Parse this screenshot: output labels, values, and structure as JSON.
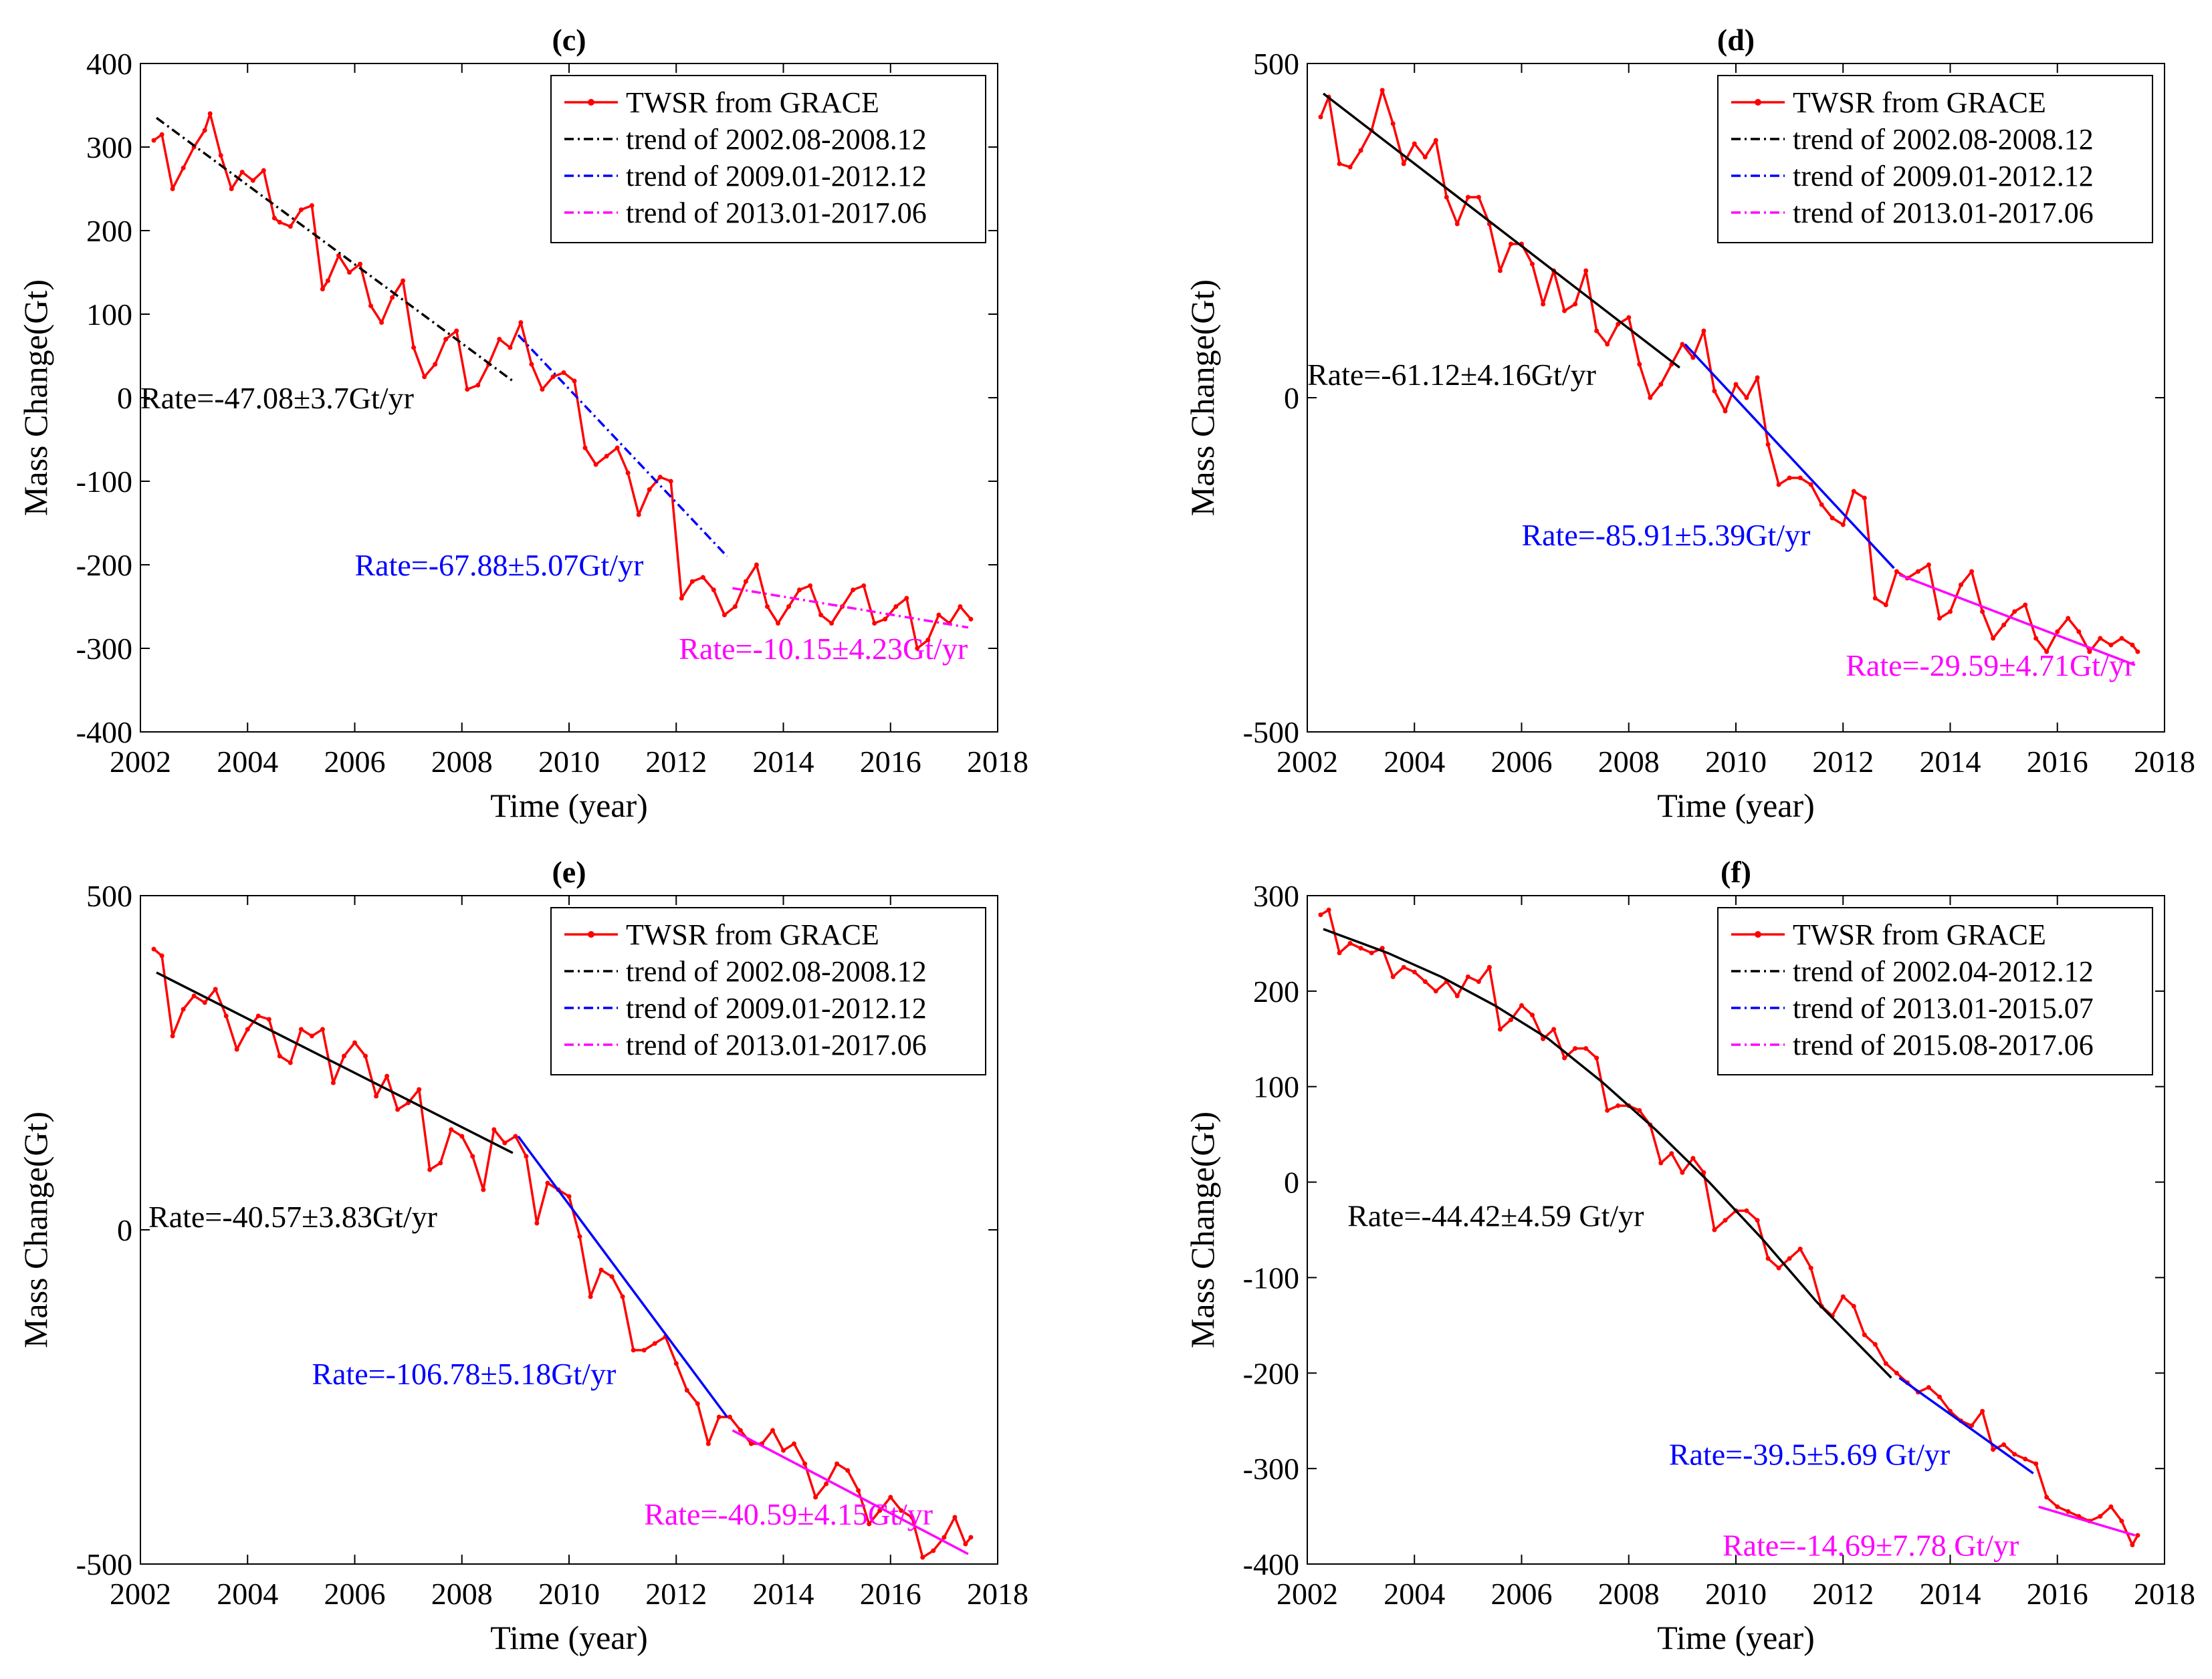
{
  "colors": {
    "data": "#ff0000",
    "trend1": "#000000",
    "trend2": "#0000ff",
    "trend3": "#ff00ff"
  },
  "chart_data": [
    {
      "type": "line",
      "title": "(c)",
      "xlabel": "Time (year)",
      "ylabel": "Mass Change(Gt)",
      "xlim": [
        2002,
        2018
      ],
      "ylim": [
        -400,
        400
      ],
      "xticks": [
        2002,
        2004,
        2006,
        2008,
        2010,
        2012,
        2014,
        2016,
        2018
      ],
      "yticks": [
        -400,
        -300,
        -200,
        -100,
        0,
        100,
        200,
        300,
        400
      ],
      "legend_position": "top-right",
      "series": [
        {
          "name": "TWSR from GRACE",
          "kind": "data",
          "color": "#ff0000",
          "x": [
            2002.25,
            2002.4,
            2002.6,
            2002.8,
            2003.0,
            2003.2,
            2003.3,
            2003.5,
            2003.7,
            2003.9,
            2004.1,
            2004.3,
            2004.5,
            2004.6,
            2004.8,
            2005.0,
            2005.2,
            2005.4,
            2005.5,
            2005.7,
            2005.9,
            2006.1,
            2006.3,
            2006.5,
            2006.7,
            2006.9,
            2007.1,
            2007.3,
            2007.5,
            2007.7,
            2007.9,
            2008.1,
            2008.3,
            2008.5,
            2008.7,
            2008.9,
            2009.1,
            2009.3,
            2009.5,
            2009.7,
            2009.9,
            2010.1,
            2010.3,
            2010.5,
            2010.7,
            2010.9,
            2011.1,
            2011.3,
            2011.5,
            2011.7,
            2011.9,
            2012.1,
            2012.3,
            2012.5,
            2012.7,
            2012.9,
            2013.1,
            2013.3,
            2013.5,
            2013.7,
            2013.9,
            2014.1,
            2014.3,
            2014.5,
            2014.7,
            2014.9,
            2015.1,
            2015.3,
            2015.5,
            2015.7,
            2015.9,
            2016.1,
            2016.3,
            2016.5,
            2016.7,
            2016.9,
            2017.1,
            2017.3,
            2017.5
          ],
          "y": [
            308,
            315,
            250,
            275,
            300,
            320,
            340,
            290,
            250,
            270,
            260,
            272,
            215,
            210,
            205,
            225,
            230,
            130,
            140,
            170,
            150,
            160,
            110,
            90,
            120,
            140,
            60,
            25,
            40,
            70,
            80,
            10,
            15,
            40,
            70,
            60,
            90,
            40,
            10,
            25,
            30,
            20,
            -60,
            -80,
            -70,
            -60,
            -90,
            -140,
            -110,
            -95,
            -100,
            -240,
            -220,
            -215,
            -230,
            -260,
            -250,
            -220,
            -200,
            -250,
            -270,
            -250,
            -230,
            -225,
            -260,
            -270,
            -250,
            -230,
            -225,
            -270,
            -265,
            -250,
            -240,
            -300,
            -290,
            -260,
            -270,
            -250,
            -265
          ]
        },
        {
          "name": "trend of 2002.08-2008.12",
          "kind": "trend",
          "color": "#000000",
          "x": [
            2002.3,
            2008.95
          ],
          "y": [
            335,
            20
          ]
        },
        {
          "name": "trend of 2009.01-2012.12",
          "kind": "trend",
          "color": "#0000ff",
          "x": [
            2009.05,
            2012.95
          ],
          "y": [
            75,
            -190
          ]
        },
        {
          "name": "trend of 2013.01-2017.06",
          "kind": "trend",
          "color": "#ff00ff",
          "x": [
            2013.05,
            2017.45
          ],
          "y": [
            -228,
            -275
          ]
        }
      ],
      "annotations": [
        {
          "text": "Rate=-47.08±3.7Gt/yr",
          "x": 2002.0,
          "y": 0,
          "color": "#000000"
        },
        {
          "text": "Rate=-67.88±5.07Gt/yr",
          "x": 2006.0,
          "y": -200,
          "color": "#0000ff"
        },
        {
          "text": "Rate=-10.15±4.23Gt/yr",
          "x": 2012.05,
          "y": -300,
          "color": "#ff00ff"
        }
      ]
    },
    {
      "type": "line",
      "title": "(d)",
      "xlabel": "Time (year)",
      "ylabel": "Mass Change(Gt)",
      "xlim": [
        2002,
        2018
      ],
      "ylim": [
        -500,
        500
      ],
      "xticks": [
        2002,
        2004,
        2006,
        2008,
        2010,
        2012,
        2014,
        2016,
        2018
      ],
      "yticks": [
        -500,
        0,
        500
      ],
      "legend_position": "top-right",
      "series": [
        {
          "name": "TWSR from GRACE",
          "kind": "data",
          "color": "#ff0000",
          "x": [
            2002.25,
            2002.4,
            2002.6,
            2002.8,
            2003.0,
            2003.2,
            2003.4,
            2003.6,
            2003.8,
            2004.0,
            2004.2,
            2004.4,
            2004.6,
            2004.8,
            2005.0,
            2005.2,
            2005.4,
            2005.6,
            2005.8,
            2006.0,
            2006.2,
            2006.4,
            2006.6,
            2006.8,
            2007.0,
            2007.2,
            2007.4,
            2007.6,
            2007.8,
            2008.0,
            2008.2,
            2008.4,
            2008.6,
            2008.8,
            2009.0,
            2009.2,
            2009.4,
            2009.6,
            2009.8,
            2010.0,
            2010.2,
            2010.4,
            2010.6,
            2010.8,
            2011.0,
            2011.2,
            2011.4,
            2011.6,
            2011.8,
            2012.0,
            2012.2,
            2012.4,
            2012.6,
            2012.8,
            2013.0,
            2013.2,
            2013.4,
            2013.6,
            2013.8,
            2014.0,
            2014.2,
            2014.4,
            2014.6,
            2014.8,
            2015.0,
            2015.2,
            2015.4,
            2015.6,
            2015.8,
            2016.0,
            2016.2,
            2016.4,
            2016.6,
            2016.8,
            2017.0,
            2017.2,
            2017.4,
            2017.5
          ],
          "y": [
            420,
            450,
            350,
            345,
            370,
            400,
            460,
            410,
            350,
            380,
            360,
            385,
            300,
            260,
            300,
            300,
            260,
            190,
            230,
            230,
            200,
            140,
            190,
            130,
            140,
            190,
            100,
            80,
            110,
            120,
            50,
            0,
            20,
            50,
            80,
            60,
            100,
            10,
            -20,
            20,
            0,
            30,
            -70,
            -130,
            -120,
            -120,
            -130,
            -160,
            -180,
            -190,
            -140,
            -150,
            -300,
            -310,
            -260,
            -270,
            -260,
            -250,
            -330,
            -320,
            -280,
            -260,
            -320,
            -360,
            -340,
            -320,
            -310,
            -360,
            -380,
            -350,
            -330,
            -350,
            -380,
            -360,
            -370,
            -360,
            -370,
            -380
          ]
        },
        {
          "name": "trend of 2002.08-2008.12",
          "kind": "trend",
          "color": "#000000",
          "x": [
            2002.3,
            2008.95
          ],
          "y": [
            455,
            45
          ]
        },
        {
          "name": "trend of 2009.01-2012.12",
          "kind": "trend",
          "color": "#0000ff",
          "x": [
            2009.05,
            2012.95
          ],
          "y": [
            80,
            -255
          ]
        },
        {
          "name": "trend of 2013.01-2017.06",
          "kind": "trend",
          "color": "#ff00ff",
          "x": [
            2013.05,
            2017.45
          ],
          "y": [
            -265,
            -400
          ]
        }
      ],
      "annotations": [
        {
          "text": "Rate=-61.12±4.16Gt/yr",
          "x": 2002.0,
          "y": 35,
          "color": "#000000"
        },
        {
          "text": "Rate=-85.91±5.39Gt/yr",
          "x": 2006.0,
          "y": -205,
          "color": "#0000ff"
        },
        {
          "text": "Rate=-29.59±4.71Gt/yr",
          "x": 2012.05,
          "y": -400,
          "color": "#ff00ff"
        }
      ]
    },
    {
      "type": "line",
      "title": "(e)",
      "xlabel": "Time (year)",
      "ylabel": "Mass Change(Gt)",
      "xlim": [
        2002,
        2018
      ],
      "ylim": [
        -500,
        500
      ],
      "xticks": [
        2002,
        2004,
        2006,
        2008,
        2010,
        2012,
        2014,
        2016,
        2018
      ],
      "yticks": [
        -500,
        0,
        500
      ],
      "legend_position": "top-right",
      "series": [
        {
          "name": "TWSR from GRACE",
          "kind": "data",
          "color": "#ff0000",
          "x": [
            2002.25,
            2002.4,
            2002.6,
            2002.8,
            2003.0,
            2003.2,
            2003.4,
            2003.6,
            2003.8,
            2004.0,
            2004.2,
            2004.4,
            2004.6,
            2004.8,
            2005.0,
            2005.2,
            2005.4,
            2005.6,
            2005.8,
            2006.0,
            2006.2,
            2006.4,
            2006.6,
            2006.8,
            2007.0,
            2007.2,
            2007.4,
            2007.6,
            2007.8,
            2008.0,
            2008.2,
            2008.4,
            2008.6,
            2008.8,
            2009.0,
            2009.2,
            2009.4,
            2009.6,
            2009.8,
            2010.0,
            2010.2,
            2010.4,
            2010.6,
            2010.8,
            2011.0,
            2011.2,
            2011.4,
            2011.6,
            2011.8,
            2012.0,
            2012.2,
            2012.4,
            2012.6,
            2012.8,
            2013.0,
            2013.2,
            2013.4,
            2013.6,
            2013.8,
            2014.0,
            2014.2,
            2014.4,
            2014.6,
            2014.8,
            2015.0,
            2015.2,
            2015.4,
            2015.6,
            2015.8,
            2016.0,
            2016.2,
            2016.4,
            2016.6,
            2016.8,
            2017.0,
            2017.2,
            2017.4,
            2017.5
          ],
          "y": [
            420,
            410,
            290,
            330,
            350,
            340,
            360,
            320,
            270,
            300,
            320,
            315,
            260,
            250,
            300,
            290,
            300,
            220,
            260,
            280,
            260,
            200,
            230,
            180,
            190,
            210,
            90,
            100,
            150,
            140,
            110,
            60,
            150,
            130,
            140,
            110,
            10,
            70,
            60,
            50,
            -10,
            -100,
            -60,
            -70,
            -100,
            -180,
            -180,
            -170,
            -160,
            -200,
            -240,
            -260,
            -320,
            -280,
            -280,
            -300,
            -320,
            -320,
            -300,
            -330,
            -320,
            -350,
            -400,
            -380,
            -350,
            -360,
            -390,
            -440,
            -420,
            -400,
            -420,
            -430,
            -490,
            -480,
            -460,
            -430,
            -470,
            -460
          ]
        },
        {
          "name": "trend of 2002.08-2008.12",
          "kind": "trend",
          "color": "#000000",
          "x": [
            2002.3,
            2008.95
          ],
          "y": [
            385,
            115
          ]
        },
        {
          "name": "trend of 2009.01-2012.12",
          "kind": "trend",
          "color": "#0000ff",
          "x": [
            2009.05,
            2012.95
          ],
          "y": [
            140,
            -280
          ]
        },
        {
          "name": "trend of 2013.01-2017.06",
          "kind": "trend",
          "color": "#ff00ff",
          "x": [
            2013.05,
            2017.45
          ],
          "y": [
            -300,
            -485
          ]
        }
      ],
      "annotations": [
        {
          "text": "Rate=-40.57±3.83Gt/yr",
          "x": 2002.15,
          "y": 20,
          "color": "#000000"
        },
        {
          "text": "Rate=-106.78±5.18Gt/yr",
          "x": 2005.2,
          "y": -215,
          "color": "#0000ff"
        },
        {
          "text": "Rate=-40.59±4.15Gt/yr",
          "x": 2011.4,
          "y": -425,
          "color": "#ff00ff"
        }
      ]
    },
    {
      "type": "line",
      "title": "(f)",
      "xlabel": "Time (year)",
      "ylabel": "Mass Change(Gt)",
      "xlim": [
        2002,
        2018
      ],
      "ylim": [
        -400,
        300
      ],
      "xticks": [
        2002,
        2004,
        2006,
        2008,
        2010,
        2012,
        2014,
        2016,
        2018
      ],
      "yticks": [
        -400,
        -300,
        -200,
        -100,
        0,
        100,
        200,
        300
      ],
      "legend_position": "top-right",
      "series": [
        {
          "name": "TWSR from GRACE",
          "kind": "data",
          "color": "#ff0000",
          "x": [
            2002.25,
            2002.4,
            2002.6,
            2002.8,
            2003.0,
            2003.2,
            2003.4,
            2003.6,
            2003.8,
            2004.0,
            2004.2,
            2004.4,
            2004.6,
            2004.8,
            2005.0,
            2005.2,
            2005.4,
            2005.6,
            2005.8,
            2006.0,
            2006.2,
            2006.4,
            2006.6,
            2006.8,
            2007.0,
            2007.2,
            2007.4,
            2007.6,
            2007.8,
            2008.0,
            2008.2,
            2008.4,
            2008.6,
            2008.8,
            2009.0,
            2009.2,
            2009.4,
            2009.6,
            2009.8,
            2010.0,
            2010.2,
            2010.4,
            2010.6,
            2010.8,
            2011.0,
            2011.2,
            2011.4,
            2011.6,
            2011.8,
            2012.0,
            2012.2,
            2012.4,
            2012.6,
            2012.8,
            2013.0,
            2013.2,
            2013.4,
            2013.6,
            2013.8,
            2014.0,
            2014.2,
            2014.4,
            2014.6,
            2014.8,
            2015.0,
            2015.2,
            2015.4,
            2015.6,
            2015.8,
            2016.0,
            2016.2,
            2016.4,
            2016.6,
            2016.8,
            2017.0,
            2017.2,
            2017.4,
            2017.5
          ],
          "y": [
            280,
            285,
            240,
            250,
            245,
            240,
            245,
            215,
            225,
            220,
            210,
            200,
            210,
            195,
            215,
            210,
            225,
            160,
            170,
            185,
            175,
            150,
            160,
            130,
            140,
            140,
            130,
            75,
            80,
            80,
            75,
            60,
            20,
            30,
            10,
            25,
            10,
            -50,
            -40,
            -30,
            -30,
            -40,
            -80,
            -90,
            -80,
            -70,
            -90,
            -130,
            -140,
            -120,
            -130,
            -160,
            -170,
            -190,
            -200,
            -210,
            -220,
            -215,
            -225,
            -240,
            -250,
            -255,
            -240,
            -280,
            -275,
            -285,
            -290,
            -295,
            -330,
            -340,
            -345,
            -350,
            -355,
            -350,
            -340,
            -355,
            -380,
            -370
          ]
        },
        {
          "name": "trend of 2002.04-2012.12",
          "kind": "trend",
          "color": "#000000",
          "x": [
            2002.3,
            2003.5,
            2004.5,
            2005.5,
            2006.5,
            2007.5,
            2008.5,
            2009.5,
            2010.5,
            2011.5,
            2012.9
          ],
          "y": [
            265,
            240,
            215,
            185,
            150,
            105,
            55,
            0,
            -60,
            -125,
            -205
          ]
        },
        {
          "name": "trend of 2013.01-2015.07",
          "kind": "trend",
          "color": "#0000ff",
          "x": [
            2013.05,
            2015.55
          ],
          "y": [
            -205,
            -305
          ]
        },
        {
          "name": "trend of 2015.08-2017.06",
          "kind": "trend",
          "color": "#ff00ff",
          "x": [
            2015.65,
            2017.45
          ],
          "y": [
            -340,
            -370
          ]
        }
      ],
      "annotations": [
        {
          "text": "Rate=-44.42±4.59 Gt/yr",
          "x": 2002.75,
          "y": -35,
          "color": "#000000"
        },
        {
          "text": "Rate=-39.5±5.69 Gt/yr",
          "x": 2008.75,
          "y": -285,
          "color": "#0000ff"
        },
        {
          "text": "Rate=-14.69±7.78 Gt/yr",
          "x": 2009.75,
          "y": -380,
          "color": "#ff00ff"
        }
      ]
    }
  ]
}
